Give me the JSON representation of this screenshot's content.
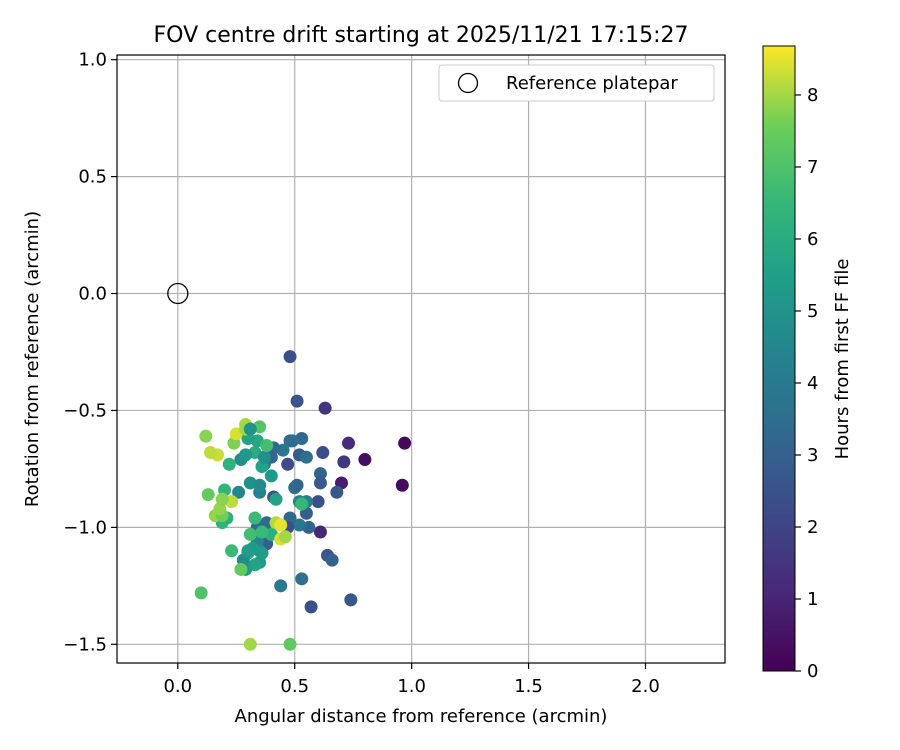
{
  "chart_data": {
    "type": "scatter",
    "title": "FOV centre drift starting at 2025/11/21 17:15:27",
    "xlabel": "Angular distance from reference (arcmin)",
    "ylabel": "Rotation from reference (arcmin)",
    "xlim": [
      -0.26,
      2.34
    ],
    "ylim": [
      -1.58,
      1.02
    ],
    "xticks": [
      0.0,
      0.5,
      1.0,
      1.5,
      2.0
    ],
    "xtick_labels": [
      "0.0",
      "0.5",
      "1.0",
      "1.5",
      "2.0"
    ],
    "yticks": [
      -1.5,
      -1.0,
      -0.5,
      0.0,
      0.5,
      1.0
    ],
    "ytick_labels": [
      "−1.5",
      "−1.0",
      "−0.5",
      "0.0",
      "0.5",
      "1.0"
    ],
    "grid": true,
    "legend": {
      "location": "top-right",
      "entries": [
        "Reference platepar"
      ]
    },
    "reference_point": {
      "x": 0.0,
      "y": 0.0,
      "label": "Reference platepar"
    },
    "colorbar": {
      "label": "Hours from first FF file",
      "range": [
        0,
        8.68
      ],
      "ticks": [
        0,
        1,
        2,
        3,
        4,
        5,
        6,
        7,
        8
      ],
      "tick_labels": [
        "0",
        "1",
        "2",
        "3",
        "4",
        "5",
        "6",
        "7",
        "8"
      ],
      "colormap": "viridis"
    },
    "series": [
      {
        "name": "FOV centre drift",
        "x": [
          0.97,
          0.96,
          0.8,
          0.73,
          0.7,
          0.71,
          0.63,
          0.62,
          0.61,
          0.61,
          0.6,
          0.68,
          0.61,
          0.64,
          0.66,
          0.74,
          0.53,
          0.48,
          0.48,
          0.51,
          0.52,
          0.55,
          0.5,
          0.52,
          0.51,
          0.55,
          0.56,
          0.47,
          0.52,
          0.45,
          0.41,
          0.4,
          0.37,
          0.41,
          0.35,
          0.38,
          0.34,
          0.36,
          0.49,
          0.55,
          0.53,
          0.57,
          0.44,
          0.53,
          0.48,
          0.47,
          0.38,
          0.34,
          0.35,
          0.35,
          0.33,
          0.32,
          0.3,
          0.29,
          0.28,
          0.31,
          0.26,
          0.27,
          0.33,
          0.36,
          0.4,
          0.37,
          0.35,
          0.34,
          0.22,
          0.2,
          0.19,
          0.23,
          0.21,
          0.24,
          0.29,
          0.29,
          0.3,
          0.35,
          0.38,
          0.42,
          0.4,
          0.36,
          0.3,
          0.27,
          0.33,
          0.42,
          0.44,
          0.12,
          0.13,
          0.16,
          0.1,
          0.19,
          0.18,
          0.31,
          0.36,
          0.25,
          0.17,
          0.14,
          0.23,
          0.44,
          0.46,
          0.48,
          0.29,
          0.31,
          0.19,
          0.31
        ],
        "y": [
          -0.64,
          -0.82,
          -0.71,
          -0.64,
          -0.81,
          -0.72,
          -0.49,
          -0.68,
          -0.77,
          -0.81,
          -0.89,
          -0.85,
          -1.02,
          -1.12,
          -1.14,
          -1.31,
          -0.62,
          -0.63,
          -0.27,
          -0.46,
          -0.69,
          -0.7,
          -0.83,
          -0.89,
          -0.82,
          -0.94,
          -1.0,
          -0.73,
          -0.99,
          -0.67,
          -0.66,
          -0.7,
          -0.73,
          -0.87,
          -0.85,
          -0.98,
          -1.0,
          -1.04,
          -0.63,
          -0.89,
          -1.22,
          -1.34,
          -1.25,
          -0.9,
          -0.96,
          -1.0,
          -1.07,
          -1.06,
          -1.1,
          -1.15,
          -1.16,
          -1.09,
          -1.11,
          -1.18,
          -1.14,
          -0.81,
          -0.85,
          -0.71,
          -0.68,
          -0.74,
          -0.78,
          -0.7,
          -0.82,
          -0.63,
          -0.73,
          -0.84,
          -0.98,
          -1.1,
          -0.96,
          -0.64,
          -0.56,
          -0.69,
          -0.62,
          -0.57,
          -0.65,
          -0.88,
          -1.03,
          -1.11,
          -1.1,
          -1.18,
          -0.96,
          -0.98,
          -1.05,
          -0.61,
          -0.86,
          -0.95,
          -1.28,
          -0.95,
          -0.92,
          -1.03,
          -1.02,
          -0.6,
          -0.69,
          -0.68,
          -0.89,
          -0.99,
          -1.04,
          -1.5,
          -0.58,
          -0.58,
          -0.88,
          -1.5
        ],
        "c": [
          0.2,
          0.3,
          0.4,
          1.2,
          0.8,
          1.6,
          1.5,
          2.3,
          3.1,
          2.8,
          2.4,
          2.7,
          1.1,
          2.6,
          3.0,
          2.7,
          3.3,
          3.4,
          2.4,
          2.6,
          2.9,
          3.5,
          3.6,
          4.4,
          3.2,
          2.9,
          3.1,
          2.2,
          3.9,
          3.8,
          3.3,
          3.2,
          4.0,
          2.4,
          4.3,
          3.4,
          3.4,
          3.0,
          3.5,
          4.2,
          3.6,
          2.4,
          4.0,
          6.5,
          3.3,
          2.3,
          3.0,
          4.4,
          4.7,
          5.3,
          5.6,
          5.2,
          6.2,
          5.3,
          4.7,
          4.9,
          4.5,
          4.8,
          6.0,
          5.6,
          5.2,
          4.9,
          4.7,
          5.8,
          6.3,
          6.4,
          6.4,
          6.6,
          6.1,
          7.7,
          8.0,
          5.2,
          5.6,
          7.1,
          6.8,
          5.6,
          6.1,
          5.4,
          5.4,
          7.4,
          6.6,
          8.1,
          8.4,
          7.8,
          7.4,
          7.9,
          7.0,
          7.6,
          7.9,
          6.8,
          6.6,
          8.4,
          8.3,
          8.2,
          8.2,
          8.5,
          8.0,
          7.3,
          8.0,
          5.0,
          7.8,
          8.0
        ]
      }
    ]
  }
}
